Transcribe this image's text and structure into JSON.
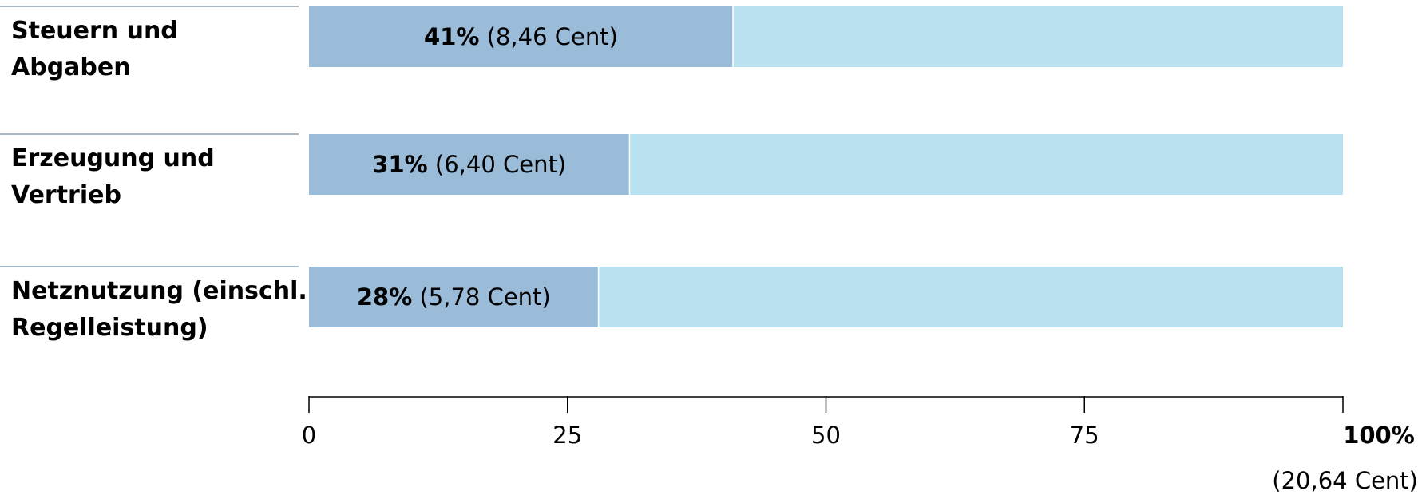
{
  "colors": {
    "bar": "#9bbcd8",
    "track": "#b9e1ef",
    "separator": "#8aa0b4",
    "axis": "#000000"
  },
  "chart_data": {
    "type": "bar",
    "orientation": "horizontal",
    "stacked_to_total": true,
    "categories": [
      [
        "Steuern und",
        "Abgaben"
      ],
      [
        "Erzeugung und",
        "Vertrieb"
      ],
      [
        "Netznutzung (einschl.",
        "Regelleistung)"
      ]
    ],
    "values": [
      41,
      31,
      28
    ],
    "bar_value_labels": [
      {
        "pct": "41%",
        "cents": " (8,46 Cent)"
      },
      {
        "pct": "31%",
        "cents": " (6,40 Cent)"
      },
      {
        "pct": "28%",
        "cents": " (5,78 Cent)"
      }
    ],
    "xlim": [
      0,
      100
    ],
    "x_ticks": [
      0,
      25,
      50,
      75,
      100
    ],
    "x_tick_labels": [
      "0",
      "25",
      "50",
      "75",
      "100%"
    ],
    "total_note": "(20,64 Cent)",
    "grid": false,
    "legend": "none"
  }
}
